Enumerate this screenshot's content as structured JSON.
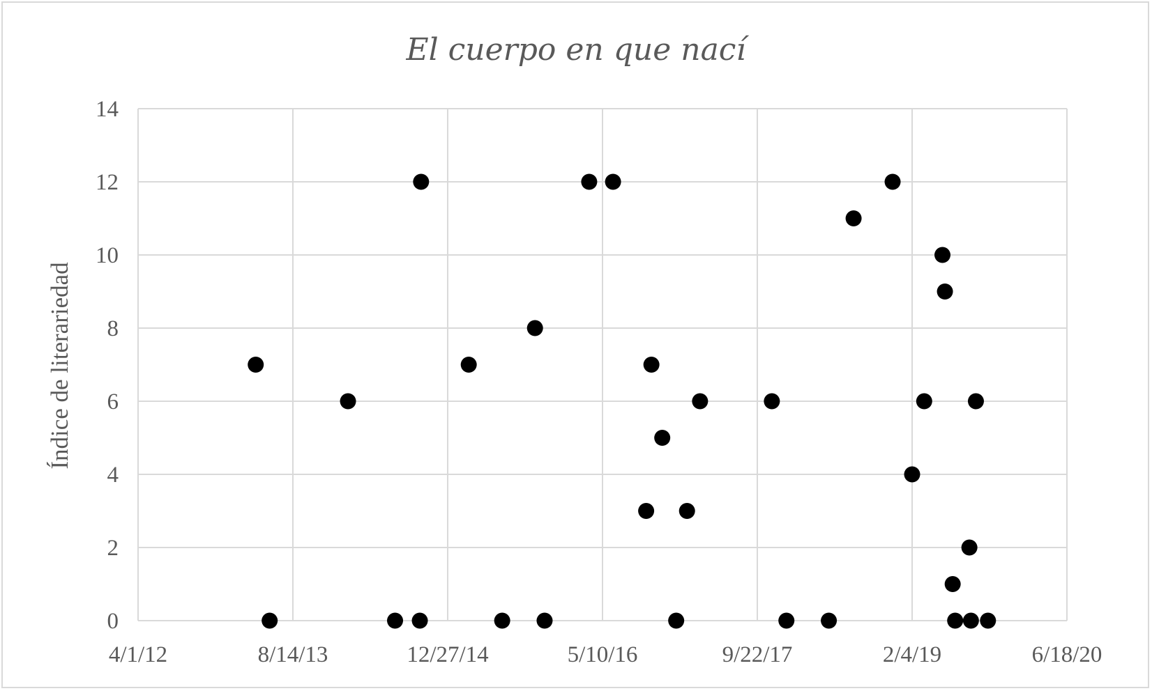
{
  "chart_data": {
    "type": "scatter",
    "title": "El cuerpo en que nací",
    "xlabel": "",
    "ylabel": "Índice de literariedad",
    "x_axis_type": "date",
    "xlim": [
      "2012-04-01",
      "2020-06-18"
    ],
    "x_ticks": [
      "4/1/12",
      "8/14/13",
      "12/27/14",
      "5/10/16",
      "9/22/17",
      "2/4/19",
      "6/18/20"
    ],
    "ylim": [
      0,
      14
    ],
    "y_ticks": [
      "0",
      "2",
      "4",
      "6",
      "8",
      "10",
      "12",
      "14"
    ],
    "grid": true,
    "legend": "none",
    "marker_color": "#000000",
    "points": [
      {
        "x": "2013-04-16",
        "y": 7
      },
      {
        "x": "2013-05-31",
        "y": 0
      },
      {
        "x": "2014-02-08",
        "y": 6
      },
      {
        "x": "2014-07-10",
        "y": 0
      },
      {
        "x": "2014-09-28",
        "y": 0
      },
      {
        "x": "2014-10-02",
        "y": 12
      },
      {
        "x": "2015-03-05",
        "y": 7
      },
      {
        "x": "2015-06-21",
        "y": 0
      },
      {
        "x": "2015-10-05",
        "y": 8
      },
      {
        "x": "2015-11-05",
        "y": 0
      },
      {
        "x": "2016-03-28",
        "y": 12
      },
      {
        "x": "2016-06-13",
        "y": 12
      },
      {
        "x": "2016-09-28",
        "y": 3
      },
      {
        "x": "2016-10-15",
        "y": 7
      },
      {
        "x": "2016-11-19",
        "y": 5
      },
      {
        "x": "2017-01-03",
        "y": 0
      },
      {
        "x": "2017-02-07",
        "y": 3
      },
      {
        "x": "2017-03-21",
        "y": 6
      },
      {
        "x": "2017-11-08",
        "y": 6
      },
      {
        "x": "2017-12-25",
        "y": 0
      },
      {
        "x": "2018-05-11",
        "y": 0
      },
      {
        "x": "2018-07-30",
        "y": 11
      },
      {
        "x": "2018-12-03",
        "y": 12
      },
      {
        "x": "2019-02-04",
        "y": 4
      },
      {
        "x": "2019-03-15",
        "y": 6
      },
      {
        "x": "2019-05-13",
        "y": 10
      },
      {
        "x": "2019-05-21",
        "y": 9
      },
      {
        "x": "2019-06-15",
        "y": 1
      },
      {
        "x": "2019-06-23",
        "y": 0
      },
      {
        "x": "2019-08-08",
        "y": 2
      },
      {
        "x": "2019-08-13",
        "y": 0
      },
      {
        "x": "2019-08-29",
        "y": 6
      },
      {
        "x": "2019-10-07",
        "y": 0
      }
    ]
  }
}
